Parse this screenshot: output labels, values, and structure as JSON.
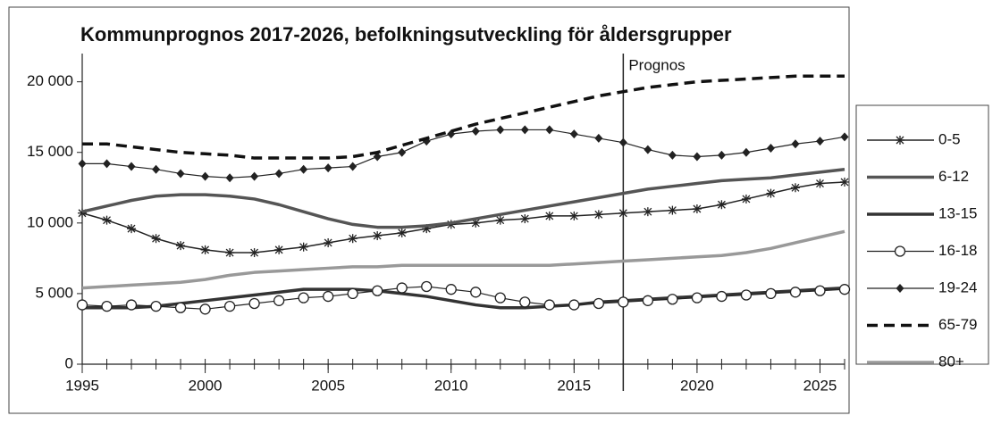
{
  "chart_data": {
    "type": "line",
    "title": "Kommunprognos 2017-2026, befolkningsutveckling för åldersgrupper",
    "x": [
      1995,
      1996,
      1997,
      1998,
      1999,
      2000,
      2001,
      2002,
      2003,
      2004,
      2005,
      2006,
      2007,
      2008,
      2009,
      2010,
      2011,
      2012,
      2013,
      2014,
      2015,
      2016,
      2017,
      2018,
      2019,
      2020,
      2021,
      2022,
      2023,
      2024,
      2025,
      2026
    ],
    "xlim": [
      1995,
      2026
    ],
    "xticks": [
      1995,
      2000,
      2005,
      2010,
      2015,
      2020,
      2025
    ],
    "ylim": [
      0,
      22000
    ],
    "yticks": [
      0,
      {
        "value": 5000,
        "label": "5 000"
      },
      {
        "value": 10000,
        "label": "10 000"
      },
      {
        "value": 15000,
        "label": "15 000"
      },
      {
        "value": 20000,
        "label": "20 000"
      }
    ],
    "grid": false,
    "legend": "right",
    "annotations": [
      {
        "text": "Prognos",
        "x": 2017
      }
    ],
    "series": [
      {
        "name": "0-5",
        "color": "#222222",
        "width": 1.5,
        "marker": "star",
        "dash": "none",
        "values": [
          10700,
          10200,
          9600,
          8900,
          8400,
          8100,
          7900,
          7900,
          8100,
          8300,
          8600,
          8900,
          9100,
          9300,
          9600,
          9900,
          10000,
          10200,
          10300,
          10500,
          10500,
          10600,
          10700,
          10800,
          10900,
          11000,
          11300,
          11700,
          12100,
          12500,
          12800,
          12900
        ]
      },
      {
        "name": "6-12",
        "color": "#555555",
        "width": 3.5,
        "marker": "none",
        "dash": "none",
        "values": [
          10800,
          11200,
          11600,
          11900,
          12000,
          12000,
          11900,
          11700,
          11300,
          10800,
          10300,
          9900,
          9700,
          9700,
          9800,
          10000,
          10300,
          10600,
          10900,
          11200,
          11500,
          11800,
          12100,
          12400,
          12600,
          12800,
          13000,
          13100,
          13200,
          13400,
          13600,
          13800
        ]
      },
      {
        "name": "13-15",
        "color": "#333333",
        "width": 3.5,
        "marker": "none",
        "dash": "none",
        "values": [
          4000,
          4000,
          4000,
          4100,
          4300,
          4500,
          4700,
          4900,
          5100,
          5300,
          5300,
          5300,
          5200,
          5000,
          4800,
          4500,
          4200,
          4000,
          4000,
          4100,
          4200,
          4400,
          4500,
          4600,
          4700,
          4800,
          4900,
          5000,
          5100,
          5200,
          5300,
          5400
        ]
      },
      {
        "name": "16-18",
        "color": "#222222",
        "width": 1.2,
        "marker": "circle",
        "dash": "none",
        "values": [
          4200,
          4100,
          4200,
          4100,
          4000,
          3900,
          4100,
          4300,
          4500,
          4700,
          4800,
          5000,
          5200,
          5400,
          5500,
          5300,
          5100,
          4700,
          4400,
          4200,
          4200,
          4300,
          4400,
          4500,
          4600,
          4700,
          4800,
          4900,
          5000,
          5100,
          5200,
          5300
        ]
      },
      {
        "name": "19-24",
        "color": "#222222",
        "width": 1.2,
        "marker": "diamond",
        "dash": "none",
        "values": [
          14200,
          14200,
          14000,
          13800,
          13500,
          13300,
          13200,
          13300,
          13500,
          13800,
          13900,
          14000,
          14700,
          15000,
          15800,
          16300,
          16500,
          16600,
          16600,
          16600,
          16300,
          16000,
          15700,
          15200,
          14800,
          14700,
          14800,
          15000,
          15300,
          15600,
          15800,
          16100
        ]
      },
      {
        "name": "65-79",
        "color": "#111111",
        "width": 3.5,
        "marker": "none",
        "dash": "12 7",
        "values": [
          15600,
          15600,
          15400,
          15200,
          15000,
          14900,
          14800,
          14600,
          14600,
          14600,
          14600,
          14700,
          15000,
          15500,
          16000,
          16500,
          17000,
          17400,
          17800,
          18200,
          18600,
          19000,
          19300,
          19600,
          19800,
          20000,
          20100,
          20200,
          20300,
          20400,
          20400,
          20400
        ]
      },
      {
        "name": "80+",
        "color": "#999999",
        "width": 3.5,
        "marker": "none",
        "dash": "none",
        "values": [
          5400,
          5500,
          5600,
          5700,
          5800,
          6000,
          6300,
          6500,
          6600,
          6700,
          6800,
          6900,
          6900,
          7000,
          7000,
          7000,
          7000,
          7000,
          7000,
          7000,
          7100,
          7200,
          7300,
          7400,
          7500,
          7600,
          7700,
          7900,
          8200,
          8600,
          9000,
          9400
        ]
      }
    ]
  }
}
